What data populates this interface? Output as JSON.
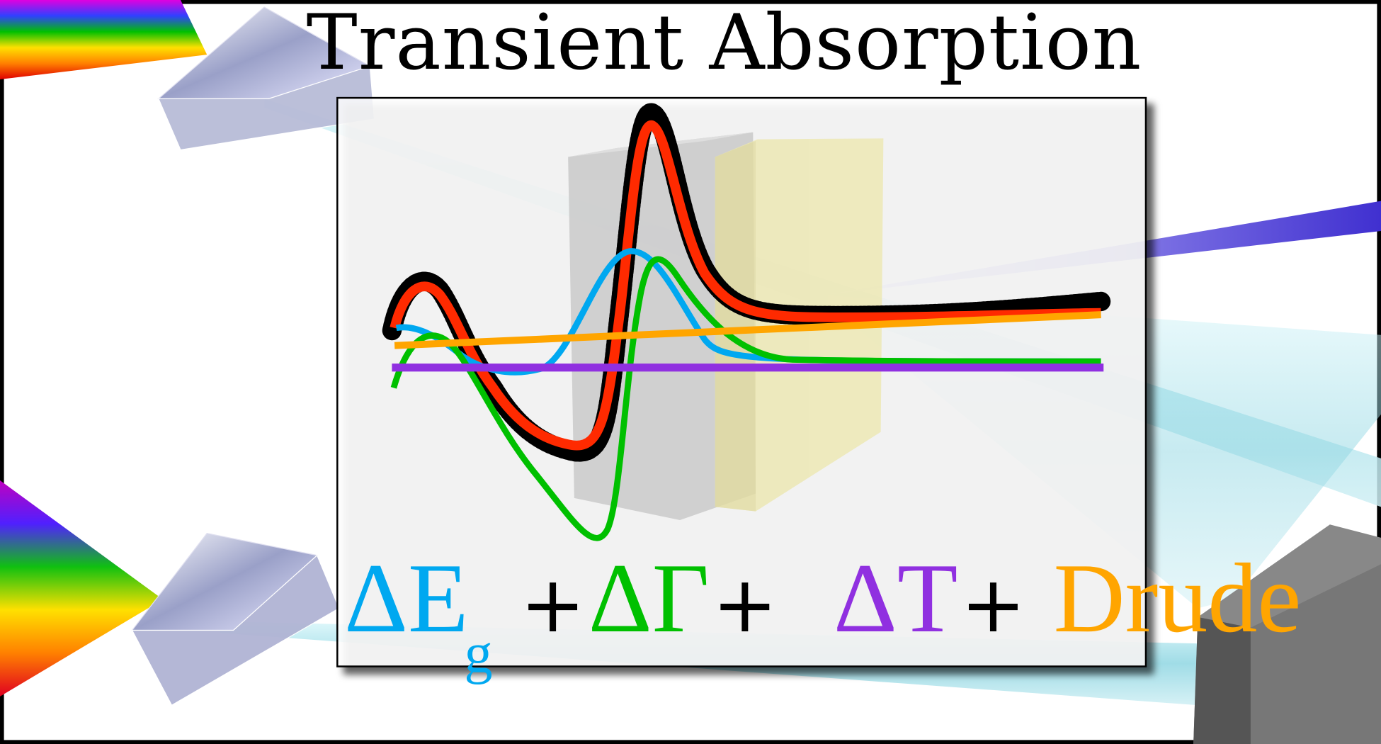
{
  "title": "Transient Absorption",
  "equation": {
    "terms": [
      {
        "symbol": "ΔE",
        "subscript": "g",
        "color": "#00a8f0"
      },
      {
        "symbol": "ΔΓ",
        "color": "#00c000"
      },
      {
        "symbol": "ΔT",
        "color": "#9030e0"
      },
      {
        "symbol": "Drude",
        "color": "#ffa500"
      }
    ],
    "operator": "+"
  },
  "colors": {
    "data": "#000000",
    "fit": "#ff2a00",
    "gap_term": "#00a8f0",
    "broadening_term": "#00c000",
    "temperature_term": "#9030e0",
    "drude_term": "#ffa500",
    "probe_beam": "#a8e4ee",
    "pump_beam": "#5a40e0",
    "sample_layer_1": "#b8b8b8",
    "sample_layer_2": "#ece7b0",
    "detector": "#666666"
  }
}
